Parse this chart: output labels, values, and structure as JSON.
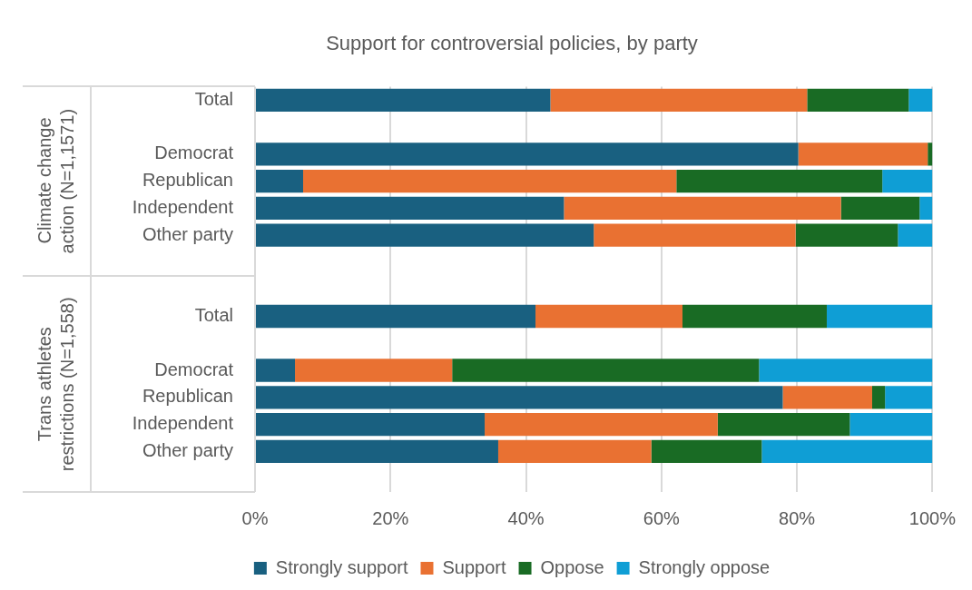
{
  "chart_data": {
    "type": "bar",
    "orientation": "horizontal",
    "stacked": true,
    "title": "Support for controversial policies, by party",
    "categories": [
      "Total",
      null,
      "Democrat",
      "Republican",
      "Independent",
      "Other party",
      null,
      null,
      "Total",
      null,
      "Democrat",
      "Republican",
      "Independent",
      "Other party",
      null
    ],
    "series": [
      {
        "name": "Strongly support",
        "color": "#196080",
        "values": [
          43.6,
          null,
          80.2,
          7.1,
          45.6,
          50.0,
          null,
          null,
          41.4,
          null,
          5.9,
          77.9,
          33.9,
          35.9,
          null
        ]
      },
      {
        "name": "Support",
        "color": "#e97132",
        "values": [
          37.9,
          null,
          19.1,
          55.1,
          40.9,
          29.8,
          null,
          null,
          21.7,
          null,
          23.2,
          13.2,
          34.4,
          22.6,
          null
        ]
      },
      {
        "name": "Oppose",
        "color": "#196b24",
        "values": [
          15.0,
          null,
          0.7,
          30.4,
          11.6,
          15.1,
          null,
          null,
          21.3,
          null,
          45.3,
          1.9,
          19.5,
          16.3,
          null
        ]
      },
      {
        "name": "Strongly oppose",
        "color": "#0f9ed5",
        "values": [
          3.5,
          null,
          0,
          7.4,
          1.9,
          5.1,
          null,
          null,
          15.6,
          null,
          25.6,
          7.0,
          12.2,
          25.2,
          null
        ]
      }
    ],
    "xlim": [
      0,
      100
    ],
    "xticks": [
      {
        "value": 0,
        "label": "0%"
      },
      {
        "value": 20,
        "label": "20%"
      },
      {
        "value": 40,
        "label": "40%"
      },
      {
        "value": 60,
        "label": "60%"
      },
      {
        "value": 80,
        "label": "80%"
      },
      {
        "value": 100,
        "label": "100%"
      }
    ],
    "grid": "x",
    "legend": "bottom",
    "annotations": [
      "Climate change action (N=1,1571)",
      "Trans athletes restrictions (N=1,558)"
    ]
  }
}
